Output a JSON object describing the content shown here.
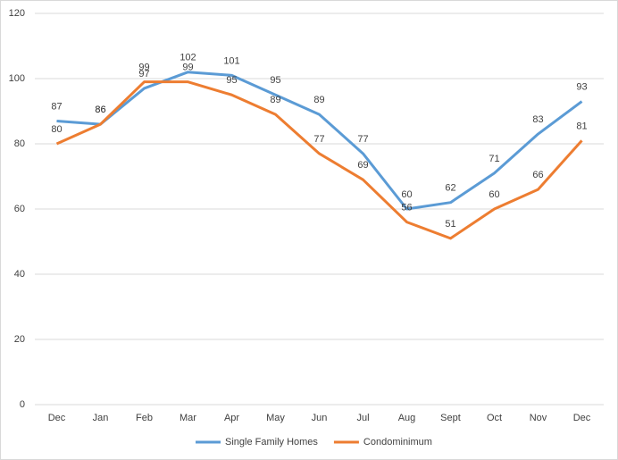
{
  "chart_data": {
    "type": "line",
    "categories": [
      "Dec",
      "Jan",
      "Feb",
      "Mar",
      "Apr",
      "May",
      "Jun",
      "Jul",
      "Aug",
      "Sept",
      "Oct",
      "Nov",
      "Dec"
    ],
    "series": [
      {
        "name": "Single Family Homes",
        "color": "#5b9bd5",
        "values": [
          87,
          86,
          97,
          102,
          101,
          95,
          89,
          77,
          60,
          62,
          71,
          83,
          93
        ]
      },
      {
        "name": "Condominimum",
        "color": "#ed7d31",
        "values": [
          80,
          86,
          99,
          99,
          95,
          89,
          77,
          69,
          56,
          51,
          60,
          66,
          81
        ]
      }
    ],
    "ylim": [
      0,
      120
    ],
    "yticks": [
      0,
      20,
      40,
      60,
      80,
      100,
      120
    ],
    "grid": true,
    "legend": "bottom"
  }
}
